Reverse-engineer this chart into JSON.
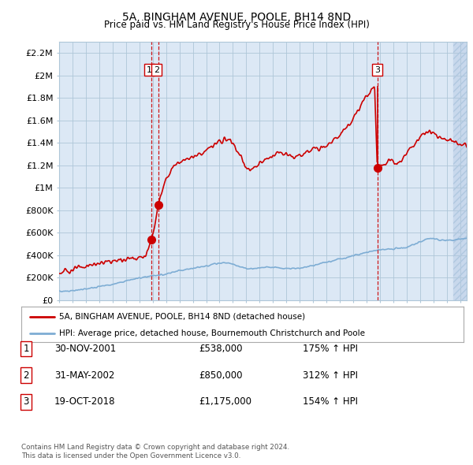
{
  "title": "5A, BINGHAM AVENUE, POOLE, BH14 8ND",
  "subtitle": "Price paid vs. HM Land Registry's House Price Index (HPI)",
  "legend_line1": "5A, BINGHAM AVENUE, POOLE, BH14 8ND (detached house)",
  "legend_line2": "HPI: Average price, detached house, Bournemouth Christchurch and Poole",
  "footer1": "Contains HM Land Registry data © Crown copyright and database right 2024.",
  "footer2": "This data is licensed under the Open Government Licence v3.0.",
  "sale_points": [
    {
      "num": 1,
      "date": "30-NOV-2001",
      "price": "£538,000",
      "hpi": "175% ↑ HPI",
      "year": 2001.917
    },
    {
      "num": 2,
      "date": "31-MAY-2002",
      "price": "£850,000",
      "hpi": "312% ↑ HPI",
      "year": 2002.417
    },
    {
      "num": 3,
      "date": "19-OCT-2018",
      "price": "£1,175,000",
      "hpi": "154% ↑ HPI",
      "year": 2018.8
    }
  ],
  "sale_values": [
    538000,
    850000,
    1175000
  ],
  "ylim": [
    0,
    2300000
  ],
  "yticks": [
    0,
    200000,
    400000,
    600000,
    800000,
    1000000,
    1200000,
    1400000,
    1600000,
    1800000,
    2000000,
    2200000
  ],
  "ytick_labels": [
    "£0",
    "£200K",
    "£400K",
    "£600K",
    "£800K",
    "£1M",
    "£1.2M",
    "£1.4M",
    "£1.6M",
    "£1.8M",
    "£2M",
    "£2.2M"
  ],
  "red_line_color": "#cc0000",
  "blue_line_color": "#7eadd4",
  "chart_bg_color": "#dce8f5",
  "background_color": "#ffffff",
  "grid_color": "#aec6d8",
  "sale_marker_color": "#cc0000",
  "vline_color": "#cc0000",
  "shade_color": "#c8d8ec",
  "xmin": 1995.0,
  "xmax": 2025.5
}
